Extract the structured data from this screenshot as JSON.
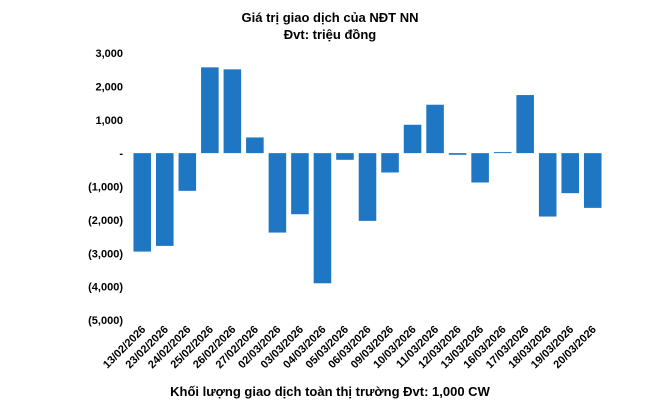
{
  "chart_data": {
    "type": "bar",
    "title": "Giá trị giao dịch của NĐT NN",
    "subtitle": "Đvt: triệu đồng",
    "xlabel": "Khối lượng giao dịch toàn thị trường Đvt: 1,000 CW",
    "ylabel": "",
    "ylim": [
      -5000,
      3000
    ],
    "yticks": [
      3000,
      2000,
      1000,
      0,
      -1000,
      -2000,
      -3000,
      -4000,
      -5000
    ],
    "ytick_labels": [
      "3,000",
      "2,000",
      "1,000",
      "-",
      "(1,000)",
      "(2,000)",
      "(3,000)",
      "(4,000)",
      "(5,000)"
    ],
    "grid": false,
    "legend": "none",
    "bar_color": "#1F77C4",
    "categories": [
      "13/02/2026",
      "23/02/2026",
      "24/02/2026",
      "25/02/2026",
      "26/02/2026",
      "27/02/2026",
      "02/03/2026",
      "03/03/2026",
      "04/03/2026",
      "05/03/2026",
      "06/03/2026",
      "09/03/2026",
      "10/03/2026",
      "11/03/2026",
      "12/03/2026",
      "13/03/2026",
      "16/03/2026",
      "17/03/2026",
      "18/03/2026",
      "19/03/2026",
      "20/03/2026"
    ],
    "values": [
      -2950,
      -2780,
      -1130,
      2570,
      2510,
      470,
      -2380,
      -1830,
      -3900,
      -200,
      -2030,
      -580,
      850,
      1450,
      -50,
      -880,
      30,
      1740,
      -1900,
      -1200,
      -1640
    ]
  }
}
